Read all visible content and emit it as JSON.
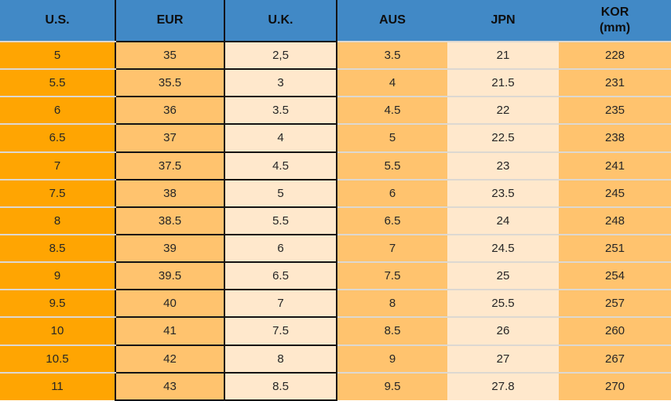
{
  "chart_data": {
    "type": "table",
    "columns": [
      {
        "key": "us",
        "label": "U.S."
      },
      {
        "key": "eur",
        "label": "EUR"
      },
      {
        "key": "uk",
        "label": "U.K."
      },
      {
        "key": "aus",
        "label": "AUS"
      },
      {
        "key": "jpn",
        "label": "JPN"
      },
      {
        "key": "kor",
        "label": "KOR",
        "sublabel": "(mm)"
      }
    ],
    "rows": [
      [
        "5",
        "35",
        "2,5",
        "3.5",
        "21",
        "228"
      ],
      [
        "5.5",
        "35.5",
        "3",
        "4",
        "21.5",
        "231"
      ],
      [
        "6",
        "36",
        "3.5",
        "4.5",
        "22",
        "235"
      ],
      [
        "6.5",
        "37",
        "4",
        "5",
        "22.5",
        "238"
      ],
      [
        "7",
        "37.5",
        "4.5",
        "5.5",
        "23",
        "241"
      ],
      [
        "7.5",
        "38",
        "5",
        "6",
        "23.5",
        "245"
      ],
      [
        "8",
        "38.5",
        "5.5",
        "6.5",
        "24",
        "248"
      ],
      [
        "8.5",
        "39",
        "6",
        "7",
        "24.5",
        "251"
      ],
      [
        "9",
        "39.5",
        "6.5",
        "7.5",
        "25",
        "254"
      ],
      [
        "9.5",
        "40",
        "7",
        "8",
        "25.5",
        "257"
      ],
      [
        "10",
        "41",
        "7.5",
        "8.5",
        "26",
        "260"
      ],
      [
        "10.5",
        "42",
        "8",
        "9",
        "27",
        "267"
      ],
      [
        "11",
        "43",
        "8.5",
        "9.5",
        "27.8",
        "270"
      ]
    ]
  },
  "colors": {
    "header_bg": "#4189C6",
    "col_orange": "#FFA502",
    "col_light_orange": "#FFC36E",
    "col_cream": "#FFE8CC",
    "border_dark": "#141414",
    "border_light": "#DDD8D1",
    "header_text": "#0E0E0E",
    "body_text": "#262626"
  }
}
